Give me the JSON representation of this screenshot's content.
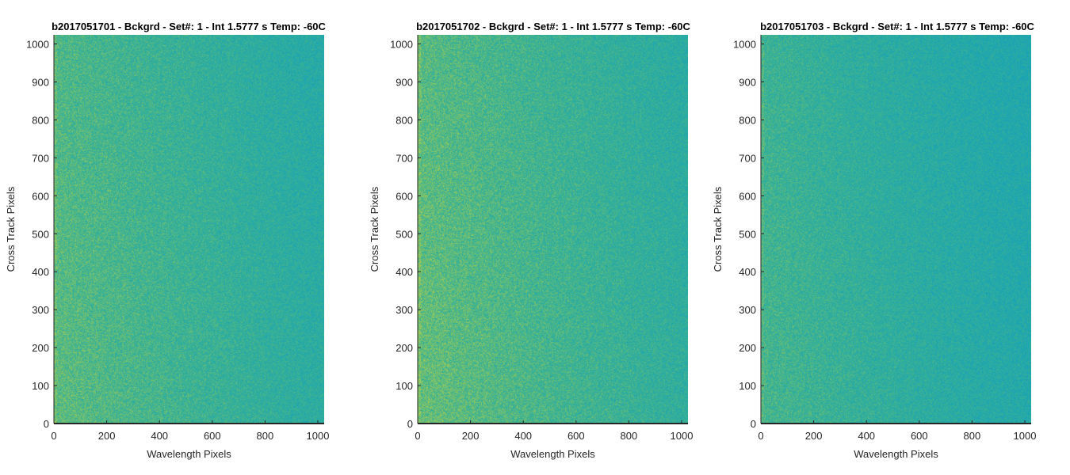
{
  "chart_data": [
    {
      "type": "heatmap",
      "title": "b2017051701 - Bckgrd - Set#: 1 - Int 1.5777 s Temp: -60C",
      "xlabel": "Wavelength Pixels",
      "ylabel": "Cross Track Pixels",
      "xlim": [
        0,
        1024
      ],
      "ylim": [
        0,
        1024
      ],
      "xticks": [
        0,
        200,
        400,
        600,
        800,
        1000
      ],
      "yticks": [
        0,
        100,
        200,
        300,
        400,
        500,
        600,
        700,
        800,
        900,
        1000
      ],
      "colormap": "parula",
      "description_colors": {
        "low": "#1aa3b5",
        "mid": "#3cb391",
        "high": "#b5cf4a"
      },
      "grid": false
    },
    {
      "type": "heatmap",
      "title": "b2017051702 - Bckgrd - Set#: 1 - Int 1.5777 s Temp: -60C",
      "xlabel": "Wavelength Pixels",
      "ylabel": "Cross Track Pixels",
      "xlim": [
        0,
        1024
      ],
      "ylim": [
        0,
        1024
      ],
      "xticks": [
        0,
        200,
        400,
        600,
        800,
        1000
      ],
      "yticks": [
        0,
        100,
        200,
        300,
        400,
        500,
        600,
        700,
        800,
        900,
        1000
      ],
      "colormap": "parula",
      "description_colors": {
        "low": "#1aa3b5",
        "mid": "#3cb391",
        "high": "#b5cf4a"
      },
      "grid": false
    },
    {
      "type": "heatmap",
      "title": "b2017051703 - Bckgrd - Set#: 1 - Int 1.5777 s Temp: -60C",
      "xlabel": "Wavelength Pixels",
      "ylabel": "Cross Track Pixels",
      "xlim": [
        0,
        1024
      ],
      "ylim": [
        0,
        1024
      ],
      "xticks": [
        0,
        200,
        400,
        600,
        800,
        1000
      ],
      "yticks": [
        0,
        100,
        200,
        300,
        400,
        500,
        600,
        700,
        800,
        900,
        1000
      ],
      "colormap": "parula",
      "description_colors": {
        "low": "#1aa3b5",
        "mid": "#3cb391",
        "high": "#b5cf4a"
      },
      "grid": false
    }
  ]
}
